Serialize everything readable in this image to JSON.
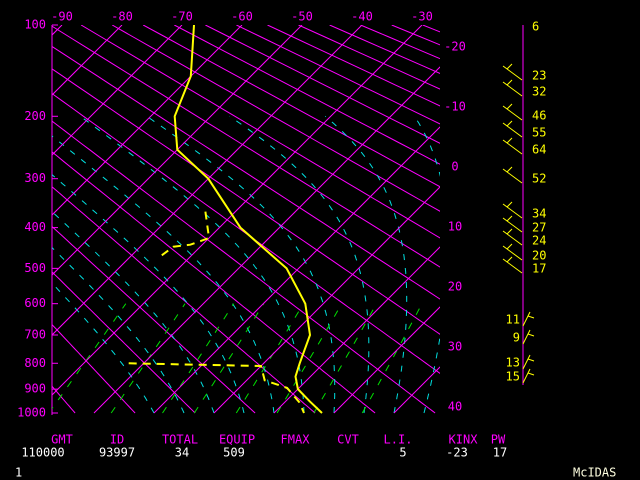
{
  "chart_data": {
    "type": "skewt",
    "xlim": [
      -90,
      -30
    ],
    "xticks": [
      -90,
      -80,
      -70,
      -60,
      -50,
      -40,
      -30
    ],
    "isotherm_labels": [
      -20,
      -10,
      0,
      10,
      20,
      30,
      40
    ],
    "ylim": [
      100,
      1000
    ],
    "yticks": [
      100,
      200,
      300,
      400,
      500,
      600,
      700,
      800,
      900,
      1000
    ],
    "temperature": {
      "color": "#ffff00",
      "pressure": [
        100,
        150,
        200,
        250,
        300,
        400,
        500,
        600,
        700,
        800,
        850,
        900,
        950,
        1000
      ],
      "values": [
        -68,
        -60,
        -56,
        -50,
        -40,
        -26.5,
        -12,
        -3,
        3,
        6,
        7.5,
        10,
        14,
        18
      ]
    },
    "dewpoint": {
      "color": "#ffff00",
      "pressure": [
        365,
        424,
        440,
        445,
        467,
        null,
        800,
        810,
        865,
        895,
        955,
        1000
      ],
      "values": [
        -35,
        -30,
        -32,
        -34.5,
        -35,
        null,
        -22.5,
        0,
        3,
        8,
        12.5,
        15
      ]
    },
    "wind_speeds": [
      6,
      23,
      32,
      46,
      55,
      64,
      52,
      34,
      27,
      24,
      20,
      17,
      11,
      9,
      13,
      15
    ]
  },
  "footer": {
    "columns": [
      {
        "header": "GMT",
        "value": "110000"
      },
      {
        "header": "ID",
        "value": "93997"
      },
      {
        "header": "TOTAL",
        "value": "34"
      },
      {
        "header": "EQUIP",
        "value": "509"
      },
      {
        "header": "FMAX"
      },
      {
        "header": "CVT"
      },
      {
        "header": "L.I.",
        "value": "5"
      },
      {
        "header": "KINX",
        "value": "-23"
      },
      {
        "header": "PW",
        "value": "17"
      }
    ]
  },
  "page_number": "1",
  "brand": "McIDAS"
}
